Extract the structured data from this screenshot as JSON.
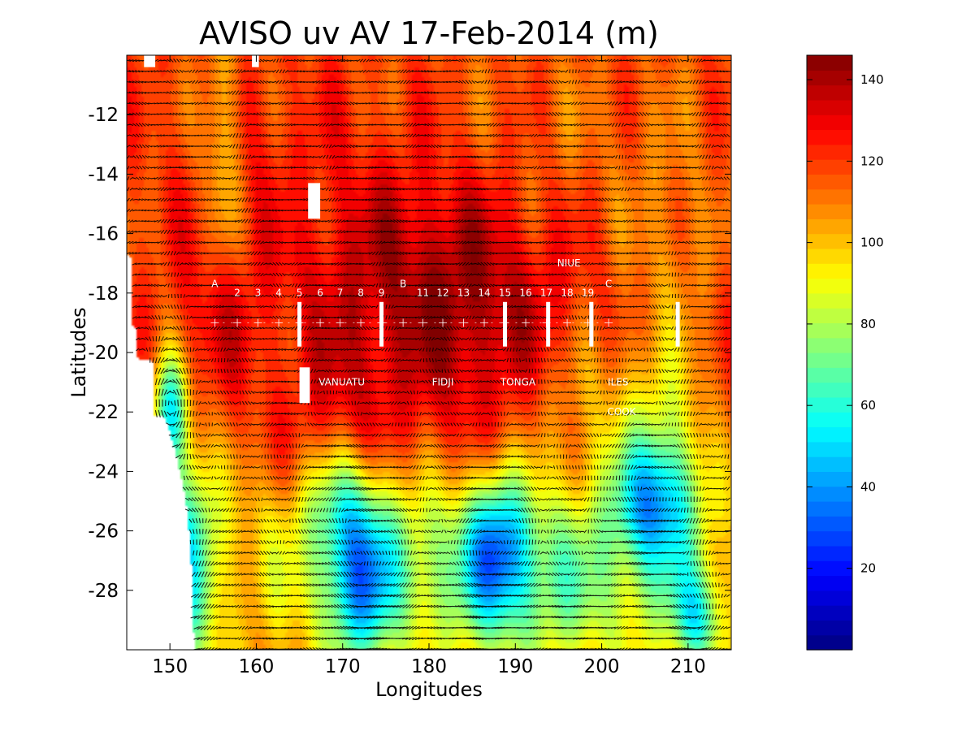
{
  "chart_data": {
    "type": "heatmap",
    "title": "AVISO uv AV 17-Feb-2014 (m)",
    "xlabel": "Longitudes",
    "ylabel": "Latitudes",
    "xlim": [
      145,
      215
    ],
    "ylim": [
      -30,
      -10
    ],
    "x_ticks": [
      150,
      160,
      170,
      180,
      190,
      200,
      210
    ],
    "y_ticks": [
      -12,
      -14,
      -16,
      -18,
      -20,
      -22,
      -24,
      -26,
      -28
    ],
    "colorbar": {
      "range": [
        0,
        146
      ],
      "ticks": [
        20,
        40,
        60,
        80,
        100,
        120,
        140
      ],
      "colormap": "jet"
    },
    "field_description": "sea surface height with overlaid velocity vectors",
    "background_value": 118,
    "field_features": [
      {
        "lon": 178,
        "lat": -17,
        "sx": 12,
        "sy": 3,
        "value": 135
      },
      {
        "lon": 186,
        "lat": -19,
        "sx": 8,
        "sy": 3,
        "value": 132
      },
      {
        "lon": 155,
        "lat": -19,
        "sx": 3,
        "sy": 2,
        "value": 130
      },
      {
        "lon": 170,
        "lat": -22,
        "sx": 4,
        "sy": 2,
        "value": 128
      },
      {
        "lon": 160,
        "lat": -13,
        "sx": 6,
        "sy": 2,
        "value": 122
      },
      {
        "lon": 156,
        "lat": -13,
        "sx": 1.6,
        "sy": 3,
        "value": 96
      },
      {
        "lon": 152,
        "lat": -27,
        "sx": 2.5,
        "sy": 3,
        "value": 72
      },
      {
        "lon": 150,
        "lat": -22,
        "sx": 1.4,
        "sy": 1.4,
        "value": 60
      },
      {
        "lon": 172,
        "lat": -28,
        "sx": 3,
        "sy": 2,
        "value": 70
      },
      {
        "lon": 188,
        "lat": -26.5,
        "sx": 2.5,
        "sy": 1.8,
        "value": 75
      },
      {
        "lon": 205,
        "lat": -25,
        "sx": 3,
        "sy": 1.5,
        "value": 82
      },
      {
        "lon": 208,
        "lat": -24.5,
        "sx": 3,
        "sy": 2.5,
        "value": 84
      },
      {
        "lon": 211,
        "lat": -29,
        "sx": 2,
        "sy": 1.2,
        "value": 78
      },
      {
        "lon": 180,
        "lat": -27,
        "sx": 14,
        "sy": 2,
        "value": 95
      },
      {
        "lon": 195,
        "lat": -28,
        "sx": 10,
        "sy": 2,
        "value": 95
      },
      {
        "lon": 170,
        "lat": -25,
        "sx": 3,
        "sy": 1.5,
        "value": 92
      },
      {
        "lon": 208,
        "lat": -17,
        "sx": 3,
        "sy": 3,
        "value": 108
      },
      {
        "lon": 193,
        "lat": -14,
        "sx": 12,
        "sy": 3,
        "value": 110
      },
      {
        "lon": 165,
        "lat": -15,
        "sx": 1.5,
        "sy": 1.2,
        "value": 112
      },
      {
        "lon": 200,
        "lat": -22,
        "sx": 6,
        "sy": 2,
        "value": 100
      }
    ],
    "station_labels": [
      {
        "text": "A",
        "lon": 155.2,
        "lat": -17.8
      },
      {
        "text": "2",
        "lon": 157.8,
        "lat": -18.1
      },
      {
        "text": "3",
        "lon": 160.2,
        "lat": -18.1
      },
      {
        "text": "4",
        "lon": 162.6,
        "lat": -18.1
      },
      {
        "text": "5",
        "lon": 165.0,
        "lat": -18.1
      },
      {
        "text": "6",
        "lon": 167.4,
        "lat": -18.1
      },
      {
        "text": "7",
        "lon": 169.7,
        "lat": -18.1
      },
      {
        "text": "8",
        "lon": 172.1,
        "lat": -18.1
      },
      {
        "text": "9",
        "lon": 174.5,
        "lat": -18.1
      },
      {
        "text": "B",
        "lon": 177.0,
        "lat": -17.8
      },
      {
        "text": "11",
        "lon": 179.3,
        "lat": -18.1
      },
      {
        "text": "12",
        "lon": 181.6,
        "lat": -18.1
      },
      {
        "text": "13",
        "lon": 184.0,
        "lat": -18.1
      },
      {
        "text": "14",
        "lon": 186.4,
        "lat": -18.1
      },
      {
        "text": "15",
        "lon": 188.8,
        "lat": -18.1
      },
      {
        "text": "16",
        "lon": 191.2,
        "lat": -18.1
      },
      {
        "text": "17",
        "lon": 193.6,
        "lat": -18.1
      },
      {
        "text": "18",
        "lon": 196.0,
        "lat": -18.1
      },
      {
        "text": "19",
        "lon": 198.4,
        "lat": -18.1
      },
      {
        "text": "C",
        "lon": 200.8,
        "lat": -17.8
      }
    ],
    "region_labels": [
      {
        "text": "NIUE",
        "lon": 196.2,
        "lat": -17.1
      },
      {
        "text": "VANUATU",
        "lon": 169.9,
        "lat": -21.1
      },
      {
        "text": "FIDJI",
        "lon": 181.6,
        "lat": -21.1
      },
      {
        "text": "TONGA",
        "lon": 190.3,
        "lat": -21.1
      },
      {
        "text": "ILES",
        "lon": 201.9,
        "lat": -21.1
      },
      {
        "text": "COOK",
        "lon": 202.3,
        "lat": -22.1
      }
    ],
    "section_line_lat": -19,
    "white_bars": [
      {
        "lon": 165.0,
        "lat_top": -18.3,
        "lat_bottom": -19.8
      },
      {
        "lon": 174.5,
        "lat_top": -18.3,
        "lat_bottom": -19.8
      },
      {
        "lon": 188.8,
        "lat_top": -18.3,
        "lat_bottom": -19.8
      },
      {
        "lon": 193.8,
        "lat_top": -18.3,
        "lat_bottom": -19.8
      },
      {
        "lon": 198.8,
        "lat_top": -18.3,
        "lat_bottom": -19.8
      },
      {
        "lon": 208.8,
        "lat_top": -18.3,
        "lat_bottom": -19.8
      }
    ],
    "masked_land": [
      {
        "lon0": 147.0,
        "lon1": 148.3,
        "lat0": -10.4,
        "lat1": -10.0
      },
      {
        "lon0": 159.5,
        "lon1": 160.3,
        "lat0": -10.4,
        "lat1": -10.0
      },
      {
        "lon0": 166.0,
        "lon1": 167.4,
        "lat0": -15.5,
        "lat1": -14.3
      },
      {
        "lon0": 165.0,
        "lon1": 166.2,
        "lat0": -21.7,
        "lat1": -20.5
      }
    ],
    "coast_mask": [
      {
        "lat": -10.0,
        "lon_max": 145.1
      },
      {
        "lat": -16.7,
        "lon_max": 145.1
      },
      {
        "lat": -16.8,
        "lon_max": 145.6
      },
      {
        "lat": -19.1,
        "lon_max": 145.6
      },
      {
        "lat": -19.2,
        "lon_max": 146.2
      },
      {
        "lat": -20.2,
        "lon_max": 146.2
      },
      {
        "lat": -20.3,
        "lon_max": 148.2
      },
      {
        "lat": -22.1,
        "lon_max": 148.2
      },
      {
        "lat": -22.2,
        "lon_max": 149.5
      },
      {
        "lat": -23.2,
        "lon_max": 150.5
      },
      {
        "lat": -24.3,
        "lon_max": 151.4
      },
      {
        "lat": -25.3,
        "lon_max": 152.0
      },
      {
        "lat": -26.7,
        "lon_max": 152.4
      },
      {
        "lat": -28.4,
        "lon_max": 152.7
      },
      {
        "lat": -30.0,
        "lon_max": 152.8
      }
    ]
  }
}
